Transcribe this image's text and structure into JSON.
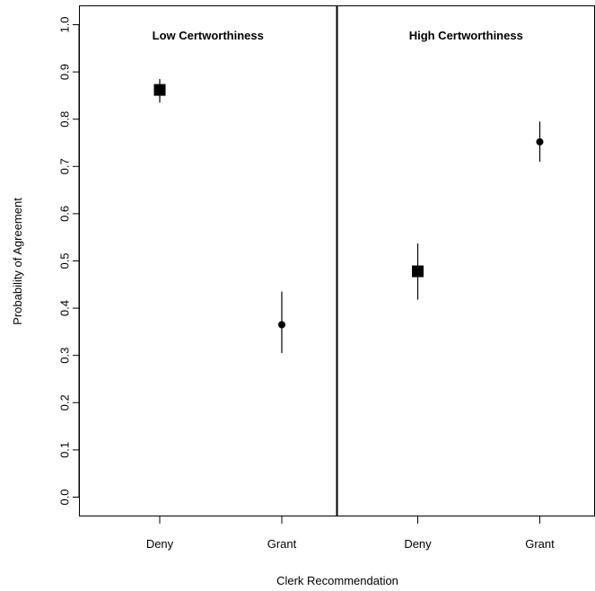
{
  "chart_data": {
    "type": "scatter",
    "xlabel": "Clerk Recommendation",
    "ylabel": "Probability of Agreement",
    "ylim": [
      0.0,
      1.0
    ],
    "yticks": [
      "0.0",
      "0.1",
      "0.2",
      "0.3",
      "0.4",
      "0.5",
      "0.6",
      "0.7",
      "0.8",
      "0.9",
      "1.0"
    ],
    "grid": false,
    "panels": [
      {
        "title": "Low Certworthiness",
        "points": [
          {
            "category": "Deny",
            "value": 0.862,
            "lower": 0.835,
            "upper": 0.885,
            "marker": "square"
          },
          {
            "category": "Grant",
            "value": 0.365,
            "lower": 0.305,
            "upper": 0.435,
            "marker": "circle"
          }
        ]
      },
      {
        "title": "High Certworthiness",
        "points": [
          {
            "category": "Deny",
            "value": 0.478,
            "lower": 0.418,
            "upper": 0.537,
            "marker": "square"
          },
          {
            "category": "Grant",
            "value": 0.752,
            "lower": 0.71,
            "upper": 0.795,
            "marker": "circle"
          }
        ]
      }
    ]
  }
}
